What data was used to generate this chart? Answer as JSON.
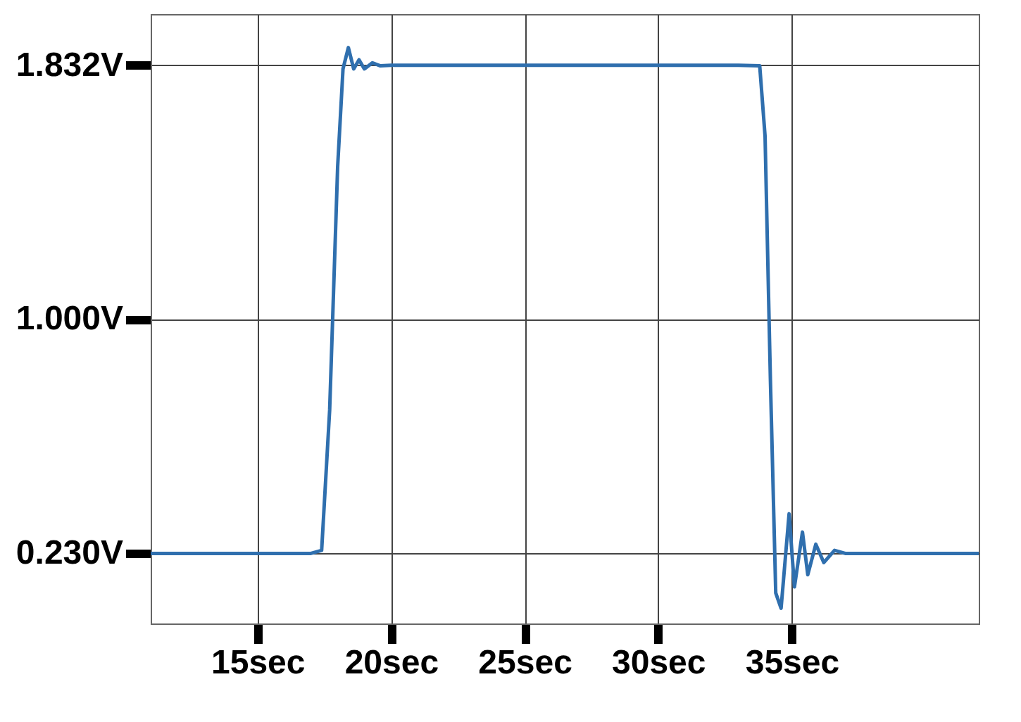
{
  "chart_data": {
    "type": "line",
    "x": [
      11,
      13,
      15,
      17,
      17.4,
      17.7,
      18.0,
      18.2,
      18.4,
      18.6,
      18.8,
      19.0,
      19.3,
      19.6,
      20,
      22,
      25,
      28,
      31,
      33,
      33.8,
      34.0,
      34.2,
      34.4,
      34.6,
      34.9,
      35.1,
      35.4,
      35.6,
      35.9,
      36.2,
      36.6,
      37,
      38,
      40,
      42
    ],
    "series": [
      {
        "color": "#2f6fae",
        "values": [
          0.23,
          0.23,
          0.23,
          0.23,
          0.24,
          0.7,
          1.5,
          1.82,
          1.89,
          1.82,
          1.85,
          1.82,
          1.84,
          1.83,
          1.832,
          1.832,
          1.832,
          1.832,
          1.832,
          1.832,
          1.83,
          1.6,
          0.8,
          0.1,
          0.05,
          0.36,
          0.12,
          0.3,
          0.16,
          0.26,
          0.2,
          0.24,
          0.23,
          0.23,
          0.23,
          0.23
        ]
      }
    ],
    "xlim": [
      11,
      42
    ],
    "ylim": [
      0,
      2.0
    ],
    "xticks": [
      {
        "value": 15,
        "label": "15sec"
      },
      {
        "value": 20,
        "label": "20sec"
      },
      {
        "value": 25,
        "label": "25sec"
      },
      {
        "value": 30,
        "label": "30sec"
      },
      {
        "value": 35,
        "label": "35sec"
      }
    ],
    "yticks": [
      {
        "value": 0.23,
        "label": "0.230V"
      },
      {
        "value": 1.0,
        "label": "1.000V"
      },
      {
        "value": 1.832,
        "label": "1.832V"
      }
    ],
    "grid": true,
    "line_style": "solid",
    "marker": "none"
  }
}
